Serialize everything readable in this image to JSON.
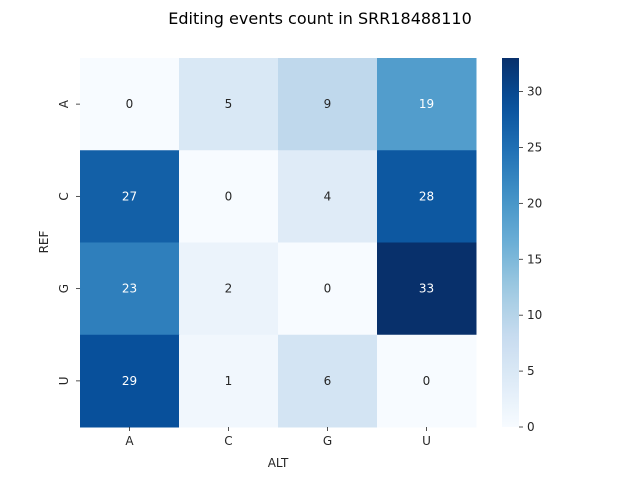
{
  "chart_data": {
    "type": "heatmap",
    "title": "Editing events count in SRR18488110",
    "xlabel": "ALT",
    "ylabel": "REF",
    "x_categories": [
      "A",
      "C",
      "G",
      "U"
    ],
    "y_categories": [
      "A",
      "C",
      "G",
      "U"
    ],
    "values": [
      [
        0,
        5,
        9,
        19
      ],
      [
        27,
        0,
        4,
        28
      ],
      [
        23,
        2,
        0,
        33
      ],
      [
        29,
        1,
        6,
        0
      ]
    ],
    "colormap": "Blues",
    "vmin": 0,
    "vmax": 33,
    "colorbar_ticks": [
      0,
      5,
      10,
      15,
      20,
      25,
      30
    ],
    "annotations": true
  }
}
